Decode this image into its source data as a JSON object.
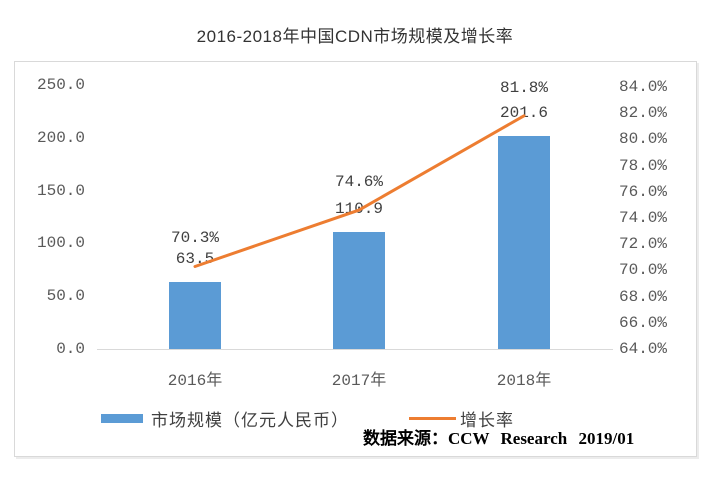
{
  "title": "2016-2018年中国CDN市场规模及增长率",
  "source_note": "数据来源：CCW Research 2019/01",
  "colors": {
    "bar": "#5B9BD5",
    "line": "#ED7D31",
    "axis_text": "#595959",
    "border": "#d9d9d9"
  },
  "legend": {
    "bar_label": "市场规模（亿元人民币）",
    "line_label": "增长率"
  },
  "chart_data": {
    "type": "bar+line",
    "title": "2016-2018年中国CDN市场规模及增长率",
    "categories": [
      "2016年",
      "2017年",
      "2018年"
    ],
    "series": [
      {
        "name": "市场规模（亿元人民币）",
        "type": "bar",
        "axis": "left",
        "color": "#5B9BD5",
        "values": [
          63.5,
          110.9,
          201.6
        ],
        "labels": [
          "63.5",
          "110.9",
          "201.6"
        ]
      },
      {
        "name": "增长率",
        "type": "line",
        "axis": "right",
        "color": "#ED7D31",
        "values": [
          70.3,
          74.6,
          81.8
        ],
        "labels": [
          "70.3%",
          "74.6%",
          "81.8%"
        ]
      }
    ],
    "left_axis": {
      "min": 0,
      "max": 250,
      "step": 50,
      "ticks": [
        "0.0",
        "50.0",
        "100.0",
        "150.0",
        "200.0",
        "250.0"
      ]
    },
    "right_axis": {
      "min": 64,
      "max": 84,
      "step": 2,
      "ticks": [
        "64.0%",
        "66.0%",
        "68.0%",
        "70.0%",
        "72.0%",
        "74.0%",
        "76.0%",
        "78.0%",
        "80.0%",
        "82.0%",
        "84.0%"
      ]
    },
    "grid": false,
    "legend_position": "bottom"
  }
}
